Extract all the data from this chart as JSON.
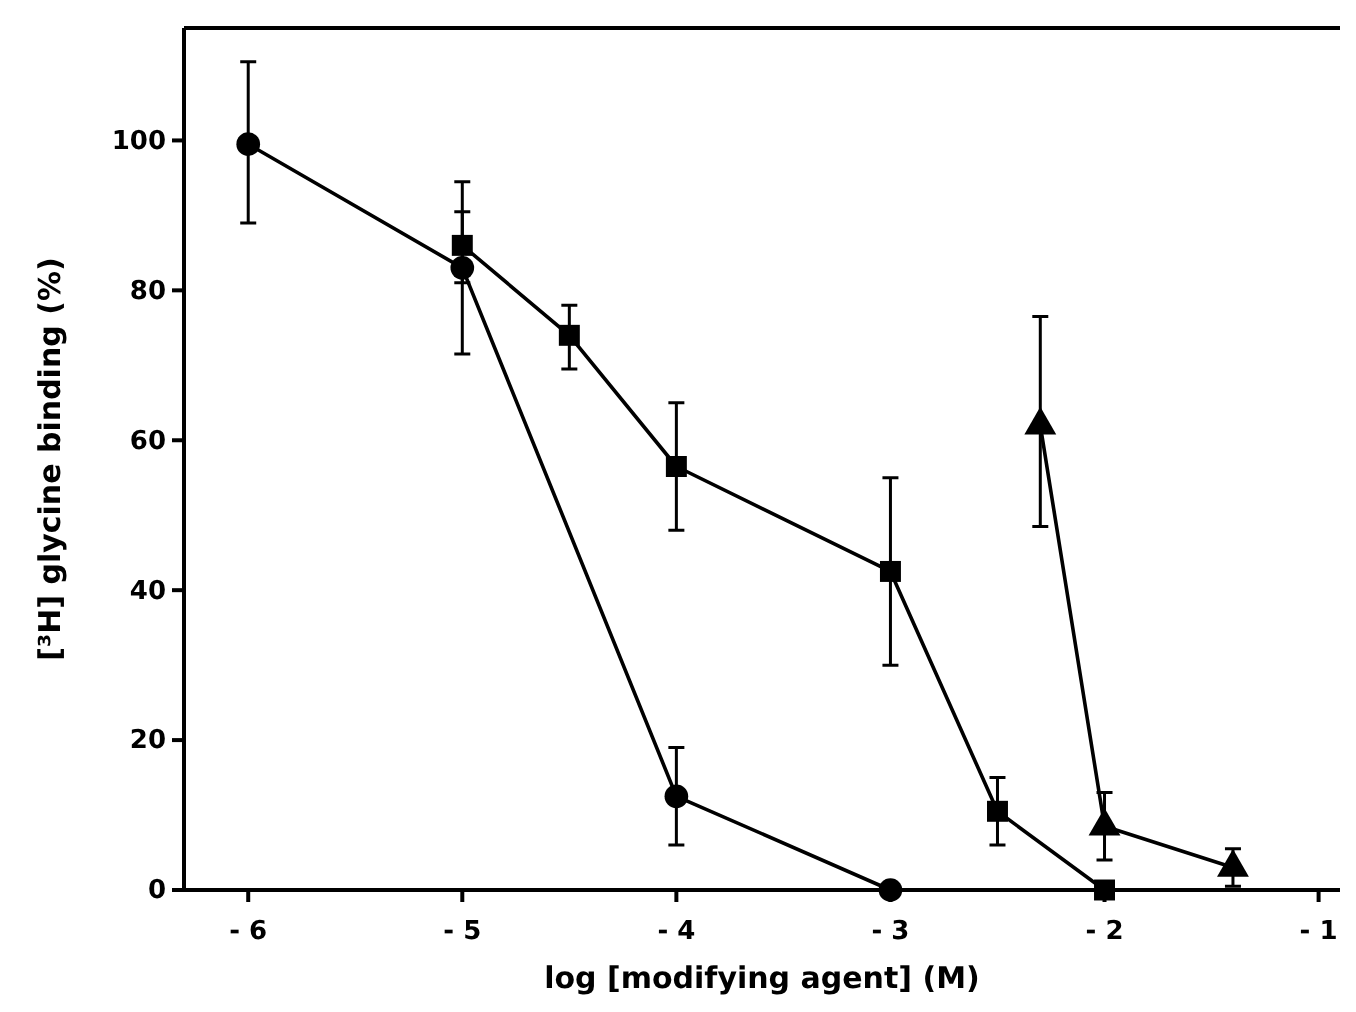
{
  "chart_data": {
    "type": "line",
    "xlabel": "log [modifying agent] (M)",
    "ylabel": "[³H] glycine binding (%)",
    "xlim": [
      -6.3,
      -0.9
    ],
    "ylim": [
      0,
      115
    ],
    "xticks": [
      -6,
      -5,
      -4,
      -3,
      -2,
      -1
    ],
    "yticks": [
      0,
      20,
      40,
      60,
      80,
      100
    ],
    "grid": false,
    "line_style": "solid",
    "series": [
      {
        "color": "#000000",
        "marker": "circle",
        "x": [
          -6,
          -5,
          -4,
          -3
        ],
        "values": [
          99.5,
          83,
          12.5,
          0
        ],
        "errors": [
          [
            89,
            110.5
          ],
          [
            71.5,
            90.5
          ],
          [
            6,
            19
          ],
          null
        ]
      },
      {
        "color": "#000000",
        "marker": "square",
        "x": [
          -5,
          -4.5,
          -4,
          -3,
          -2.5,
          -2
        ],
        "values": [
          86,
          74,
          56.5,
          42.5,
          10.5,
          0
        ],
        "errors": [
          [
            81,
            94.5
          ],
          [
            69.5,
            78
          ],
          [
            48,
            65
          ],
          [
            30,
            55
          ],
          [
            6,
            15
          ],
          null
        ]
      },
      {
        "color": "#000000",
        "marker": "triangle",
        "x": [
          -2.3,
          -2,
          -1.4
        ],
        "values": [
          62,
          8.5,
          3
        ],
        "errors": [
          [
            48.5,
            76.5
          ],
          [
            4,
            13
          ],
          [
            0.5,
            5.5
          ]
        ]
      }
    ]
  }
}
